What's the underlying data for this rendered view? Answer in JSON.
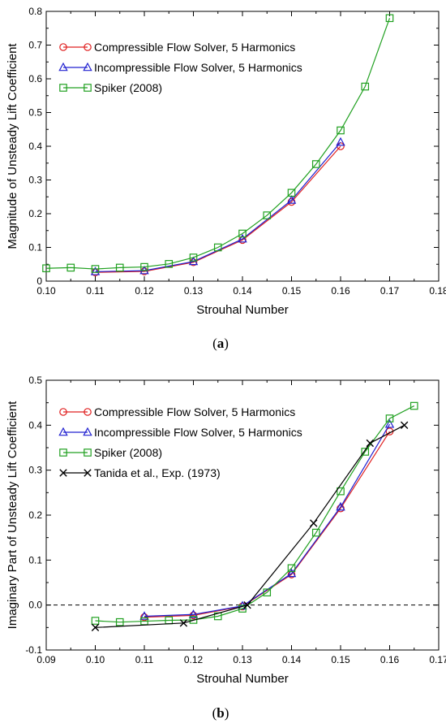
{
  "chart_data": [
    {
      "type": "line",
      "caption": "(a)",
      "xlabel": "Strouhal Number",
      "ylabel": "Magnitude of Unsteady Lift Coefficient",
      "xlim": [
        0.1,
        0.18
      ],
      "ylim": [
        0,
        0.8
      ],
      "xticks": [
        "0.10",
        "0.11",
        "0.12",
        "0.13",
        "0.14",
        "0.15",
        "0.16",
        "0.17",
        "0.18"
      ],
      "yticks": [
        "0",
        "0.1",
        "0.2",
        "0.3",
        "0.4",
        "0.5",
        "0.6",
        "0.7",
        "0.8"
      ],
      "legend_position": "top-left",
      "series": [
        {
          "name": "Compressible Flow Solver, 5 Harmonics",
          "color": "#e02020",
          "marker": "circle",
          "x": [
            0.11,
            0.12,
            0.13,
            0.14,
            0.15,
            0.16
          ],
          "y": [
            0.026,
            0.029,
            0.056,
            0.122,
            0.235,
            0.4
          ]
        },
        {
          "name": "Incompressible Flow Solver, 5 Harmonics",
          "color": "#2020d0",
          "marker": "triangle",
          "x": [
            0.11,
            0.12,
            0.13,
            0.14,
            0.15,
            0.16
          ],
          "y": [
            0.028,
            0.031,
            0.058,
            0.125,
            0.24,
            0.412
          ]
        },
        {
          "name": "Spiker (2008)",
          "color": "#20a020",
          "marker": "square",
          "x": [
            0.1,
            0.105,
            0.11,
            0.115,
            0.12,
            0.125,
            0.13,
            0.135,
            0.14,
            0.145,
            0.15,
            0.155,
            0.16,
            0.165,
            0.17
          ],
          "y": [
            0.038,
            0.04,
            0.036,
            0.04,
            0.042,
            0.051,
            0.07,
            0.1,
            0.141,
            0.195,
            0.262,
            0.347,
            0.447,
            0.577,
            0.78
          ]
        }
      ]
    },
    {
      "type": "line",
      "caption": "(b)",
      "xlabel": "Strouhal Number",
      "ylabel": "Imaginary Part of Unsteady Lift Coefficient",
      "xlim": [
        0.09,
        0.17
      ],
      "ylim": [
        -0.1,
        0.5
      ],
      "xticks": [
        "0.09",
        "0.10",
        "0.11",
        "0.12",
        "0.13",
        "0.14",
        "0.15",
        "0.16",
        "0.17"
      ],
      "yticks": [
        "-0.1",
        "0.0",
        "0.1",
        "0.2",
        "0.3",
        "0.4",
        "0.5"
      ],
      "zero_line": "dashed",
      "legend_position": "top-left",
      "series": [
        {
          "name": "Compressible Flow Solver, 5 Harmonics",
          "color": "#e02020",
          "marker": "circle",
          "x": [
            0.11,
            0.12,
            0.13,
            0.14,
            0.15,
            0.16
          ],
          "y": [
            -0.027,
            -0.023,
            -0.003,
            0.068,
            0.215,
            0.386
          ]
        },
        {
          "name": "Incompressible Flow Solver, 5 Harmonics",
          "color": "#2020d0",
          "marker": "triangle",
          "x": [
            0.11,
            0.12,
            0.13,
            0.14,
            0.15,
            0.16
          ],
          "y": [
            -0.025,
            -0.021,
            -0.002,
            0.07,
            0.218,
            0.402
          ]
        },
        {
          "name": "Spiker (2008)",
          "color": "#20a020",
          "marker": "square",
          "x": [
            0.1,
            0.105,
            0.11,
            0.115,
            0.12,
            0.125,
            0.13,
            0.135,
            0.14,
            0.145,
            0.15,
            0.155,
            0.16,
            0.165
          ],
          "y": [
            -0.035,
            -0.038,
            -0.036,
            -0.034,
            -0.033,
            -0.025,
            -0.008,
            0.028,
            0.082,
            0.161,
            0.253,
            0.341,
            0.415,
            0.443
          ]
        },
        {
          "name": "Tanida et al., Exp. (1973)",
          "color": "#000000",
          "marker": "x",
          "x": [
            0.1,
            0.118,
            0.131,
            0.1445,
            0.156,
            0.163
          ],
          "y": [
            -0.05,
            -0.04,
            0.0,
            0.182,
            0.36,
            0.4
          ]
        }
      ]
    }
  ]
}
